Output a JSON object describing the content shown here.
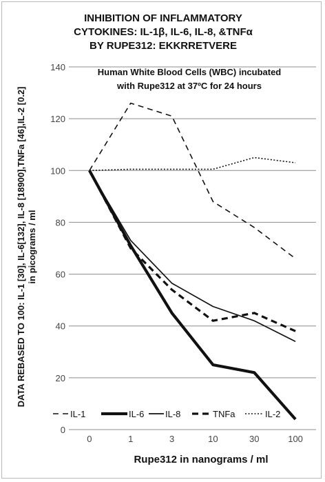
{
  "chart_data": {
    "type": "line",
    "title_lines": [
      "INHIBITION OF INFLAMMATORY",
      "CYTOKINES: IL-1β, IL-6, IL-8, &TNFα",
      "BY RUPE312: EKKRRETVERE"
    ],
    "annotation_lines": [
      "Human White Blood Cells (WBC) incubated",
      "with Rupe312 at 37ºC for 24 hours"
    ],
    "categories": [
      "0",
      "1",
      "3",
      "10",
      "30",
      "100"
    ],
    "xlabel": "Rupe312 in nanograms / ml",
    "ylabel_lines": [
      "DATA REBASED TO 100: IL-1 [30], IL-6[132], IL-8 [18900],TNFa [46],IL-2 [0.2]",
      "in picograms / ml"
    ],
    "ylim": [
      0,
      140
    ],
    "yticks": [
      "0",
      "20",
      "40",
      "60",
      "80",
      "100",
      "120",
      "140"
    ],
    "grid": true,
    "legend_position": "bottom",
    "series": [
      {
        "name": "IL-1",
        "style": "dashed-thin",
        "values": [
          100,
          126,
          121,
          88,
          78,
          66
        ]
      },
      {
        "name": "IL-6",
        "style": "solid-thick",
        "values": [
          100,
          71,
          45,
          25,
          22,
          4
        ]
      },
      {
        "name": "IL-8",
        "style": "solid-thin",
        "values": [
          100,
          73,
          56.5,
          47.5,
          42,
          34
        ]
      },
      {
        "name": "TNFa",
        "style": "dashed-thick",
        "values": [
          100,
          70,
          54,
          42,
          45,
          38
        ]
      },
      {
        "name": "IL-2",
        "style": "dotted",
        "values": [
          100,
          100.5,
          100.5,
          100.5,
          105,
          103
        ]
      }
    ]
  }
}
